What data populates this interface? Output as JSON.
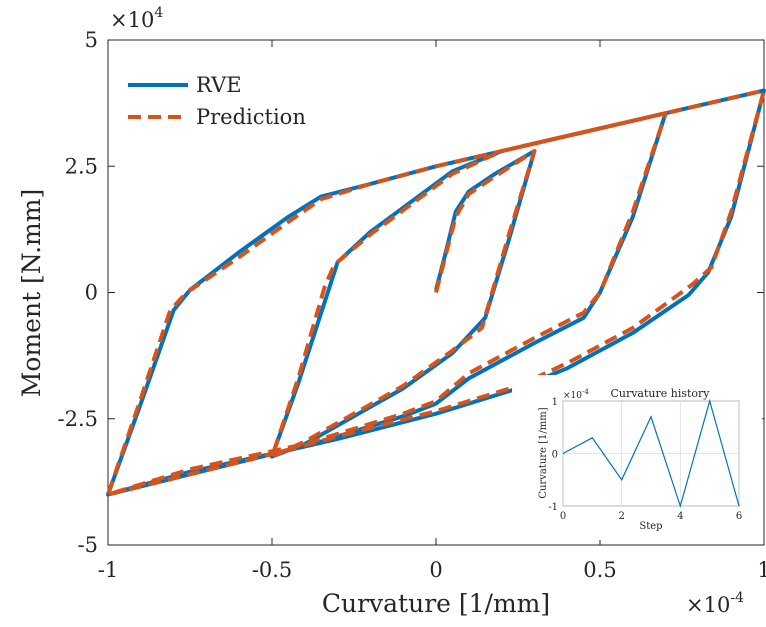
{
  "chart_data": [
    {
      "type": "line",
      "xlabel": "Curvature [1/mm]",
      "ylabel": "Moment [N.mm]",
      "x_exponent_label": "×10",
      "x_exponent_power": "-4",
      "y_exponent_label": "×10",
      "y_exponent_power": "4",
      "xlim": [
        -1,
        1
      ],
      "ylim": [
        -5,
        5
      ],
      "x_ticks": [
        -1,
        -0.5,
        0,
        0.5,
        1
      ],
      "x_tick_labels": [
        "-1",
        "-0.5",
        "0",
        "0.5",
        "1"
      ],
      "y_ticks": [
        -5,
        -2.5,
        0,
        2.5,
        5
      ],
      "y_tick_labels": [
        "-5",
        "-2.5",
        "0",
        "2.5",
        "5"
      ],
      "grid": false,
      "legend_position": "top-left",
      "series": [
        {
          "name": "RVE",
          "color": "#0072BD",
          "style": "solid",
          "points": [
            [
              0,
              0.05
            ],
            [
              0.03,
              0.8
            ],
            [
              0.06,
              1.6
            ],
            [
              0.1,
              2.0
            ],
            [
              0.18,
              2.35
            ],
            [
              0.3,
              2.8
            ],
            [
              0.22,
              1.0
            ],
            [
              0.15,
              -0.5
            ],
            [
              0.05,
              -1.2
            ],
            [
              -0.1,
              -1.9
            ],
            [
              -0.4,
              -3.0
            ],
            [
              -0.5,
              -3.25
            ],
            [
              -0.42,
              -1.8
            ],
            [
              -0.33,
              0.0
            ],
            [
              -0.3,
              0.6
            ],
            [
              -0.2,
              1.2
            ],
            [
              0.05,
              2.4
            ],
            [
              0.2,
              2.8
            ],
            [
              0.5,
              3.25
            ],
            [
              0.7,
              3.55
            ],
            [
              0.6,
              1.5
            ],
            [
              0.5,
              0.0
            ],
            [
              0.45,
              -0.5
            ],
            [
              0.3,
              -1.0
            ],
            [
              0.1,
              -1.7
            ],
            [
              0.0,
              -2.2
            ],
            [
              -0.1,
              -2.45
            ],
            [
              -0.4,
              -3.05
            ],
            [
              -0.75,
              -3.55
            ],
            [
              -1.0,
              -4.0
            ],
            [
              -0.9,
              -2.2
            ],
            [
              -0.8,
              -0.35
            ],
            [
              -0.75,
              0.05
            ],
            [
              -0.6,
              0.8
            ],
            [
              -0.45,
              1.5
            ],
            [
              -0.35,
              1.9
            ],
            [
              -0.2,
              2.15
            ],
            [
              0.0,
              2.5
            ],
            [
              0.3,
              2.95
            ],
            [
              0.7,
              3.55
            ],
            [
              1.0,
              4.0
            ],
            [
              0.9,
              1.5
            ],
            [
              0.83,
              0.4
            ],
            [
              0.77,
              -0.05
            ],
            [
              0.6,
              -0.8
            ],
            [
              0.4,
              -1.5
            ],
            [
              0.25,
              -1.9
            ],
            [
              0.0,
              -2.4
            ],
            [
              -0.3,
              -2.9
            ],
            [
              -0.5,
              -3.2
            ],
            [
              -1.0,
              -4.0
            ]
          ]
        },
        {
          "name": "Prediction",
          "color": "#D95319",
          "style": "dashed",
          "points": [
            [
              0,
              0.0
            ],
            [
              0.03,
              0.75
            ],
            [
              0.06,
              1.5
            ],
            [
              0.1,
              1.95
            ],
            [
              0.18,
              2.3
            ],
            [
              0.3,
              2.8
            ],
            [
              0.22,
              1.1
            ],
            [
              0.14,
              -0.7
            ],
            [
              0.05,
              -1.15
            ],
            [
              -0.1,
              -1.85
            ],
            [
              -0.4,
              -2.95
            ],
            [
              -0.5,
              -3.25
            ],
            [
              -0.42,
              -1.7
            ],
            [
              -0.34,
              0.1
            ],
            [
              -0.31,
              0.55
            ],
            [
              -0.2,
              1.15
            ],
            [
              0.05,
              2.35
            ],
            [
              0.2,
              2.8
            ],
            [
              0.5,
              3.25
            ],
            [
              0.7,
              3.55
            ],
            [
              0.6,
              1.6
            ],
            [
              0.5,
              0.0
            ],
            [
              0.45,
              -0.4
            ],
            [
              0.3,
              -0.9
            ],
            [
              0.1,
              -1.6
            ],
            [
              0.0,
              -2.15
            ],
            [
              -0.1,
              -2.4
            ],
            [
              -0.4,
              -3.0
            ],
            [
              -0.75,
              -3.5
            ],
            [
              -1.0,
              -4.0
            ],
            [
              -0.9,
              -2.1
            ],
            [
              -0.81,
              -0.35
            ],
            [
              -0.76,
              0.0
            ],
            [
              -0.6,
              0.7
            ],
            [
              -0.45,
              1.4
            ],
            [
              -0.35,
              1.85
            ],
            [
              -0.2,
              2.15
            ],
            [
              0.0,
              2.5
            ],
            [
              0.3,
              2.95
            ],
            [
              0.7,
              3.55
            ],
            [
              1.0,
              4.0
            ],
            [
              0.9,
              1.6
            ],
            [
              0.84,
              0.5
            ],
            [
              0.78,
              0.15
            ],
            [
              0.6,
              -0.7
            ],
            [
              0.4,
              -1.4
            ],
            [
              0.25,
              -1.85
            ],
            [
              0.0,
              -2.35
            ],
            [
              -0.3,
              -2.85
            ],
            [
              -0.5,
              -3.2
            ],
            [
              -1.0,
              -4.0
            ]
          ]
        }
      ]
    },
    {
      "type": "line",
      "title": "Curvature history",
      "xlabel": "Step",
      "ylabel": "Curvature [1/mm]",
      "y_exponent_label": "×10",
      "y_exponent_power": "-4",
      "xlim": [
        0,
        6
      ],
      "ylim": [
        -1,
        1
      ],
      "x_ticks": [
        0,
        2,
        4,
        6
      ],
      "x_tick_labels": [
        "0",
        "2",
        "4",
        "6"
      ],
      "y_ticks": [
        -1,
        0,
        1
      ],
      "y_tick_labels": [
        "-1",
        "0",
        "1"
      ],
      "grid": true,
      "series": [
        {
          "color": "#0072BD",
          "style": "solid",
          "x": [
            0,
            1,
            2,
            3,
            4,
            5,
            6
          ],
          "values": [
            0,
            0.3,
            -0.5,
            0.7,
            -1.0,
            1.0,
            -1.0
          ]
        }
      ]
    }
  ],
  "legend": {
    "items": [
      {
        "label": "RVE",
        "color": "#0072BD",
        "style": "solid"
      },
      {
        "label": "Prediction",
        "color": "#D95319",
        "style": "dashed"
      }
    ]
  }
}
